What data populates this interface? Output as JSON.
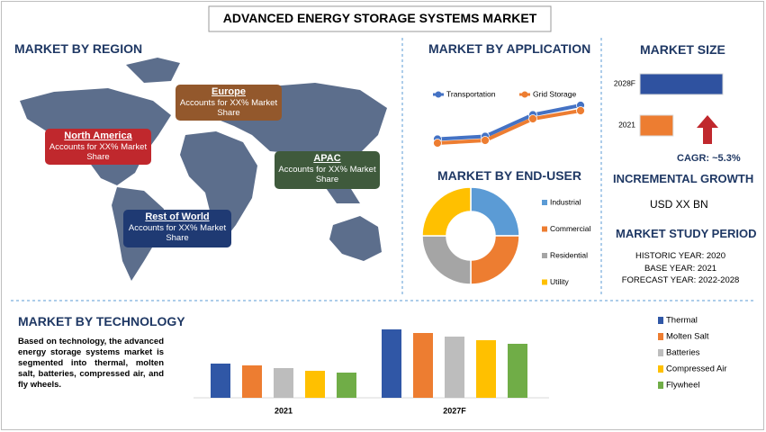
{
  "title": "ADVANCED ENERGY STORAGE SYSTEMS MARKET",
  "region": {
    "heading": "MARKET BY REGION",
    "regions": [
      {
        "name": "Europe",
        "text": "Accounts for XX% Market Share",
        "color": "#93582c"
      },
      {
        "name": "North America",
        "text": "Accounts for XX% Market Share",
        "color": "#c0282d"
      },
      {
        "name": "APAC",
        "text": "Accounts for XX% Market Share",
        "color": "#3f5a3c"
      },
      {
        "name": "Rest of World",
        "text": "Accounts for XX% Market Share",
        "color": "#1f3a73"
      }
    ]
  },
  "size": {
    "heading": "MARKET SIZE",
    "cagr": "CAGR:  ~5.3%"
  },
  "growth": {
    "heading": "INCREMENTAL GROWTH",
    "value": "USD XX BN"
  },
  "study": {
    "heading": "MARKET STUDY PERIOD",
    "lines": [
      "HISTORIC YEAR: 2020",
      "BASE YEAR: 2021",
      "FORECAST YEAR: 2022-2028"
    ]
  },
  "technology": {
    "heading": "MARKET BY TECHNOLOGY",
    "text": "Based on technology, the advanced energy storage systems market is segmented into thermal, molten salt, batteries, compressed air, and fly wheels."
  },
  "chart_data": [
    {
      "type": "line",
      "title": "MARKET BY APPLICATION",
      "categories": [
        null,
        null,
        null,
        null
      ],
      "series": [
        {
          "name": "Transportation",
          "color": "#4472c4",
          "values": [
            10,
            12,
            28,
            35
          ]
        },
        {
          "name": "Grid Storage",
          "color": "#ed7d31",
          "values": [
            7,
            9,
            25,
            31
          ]
        }
      ]
    },
    {
      "type": "donut",
      "title": "MARKET BY END-USER",
      "categories": [
        "Industrial",
        "Commercial",
        "Residential",
        "Utility"
      ],
      "values": [
        25,
        25,
        25,
        25
      ],
      "colors": [
        "#5b9bd5",
        "#ed7d31",
        "#a5a5a5",
        "#ffc000"
      ]
    },
    {
      "type": "hbar",
      "categories": [
        "2028F",
        "2021"
      ],
      "values": [
        100,
        40
      ],
      "colors": [
        "#2f52a0",
        "#ed7d31"
      ]
    },
    {
      "type": "bar",
      "categories": [
        "2021",
        "2027F"
      ],
      "series": [
        {
          "name": "Thermal",
          "color": "#3057a6",
          "values": [
            38,
            76
          ]
        },
        {
          "name": "Molten Salt",
          "color": "#ed7d31",
          "values": [
            36,
            72
          ]
        },
        {
          "name": "Batteries",
          "color": "#bdbdbd",
          "values": [
            33,
            68
          ]
        },
        {
          "name": "Compressed Air",
          "color": "#ffc000",
          "values": [
            30,
            64
          ]
        },
        {
          "name": "Flywheel",
          "color": "#70ad47",
          "values": [
            28,
            60
          ]
        }
      ]
    }
  ]
}
